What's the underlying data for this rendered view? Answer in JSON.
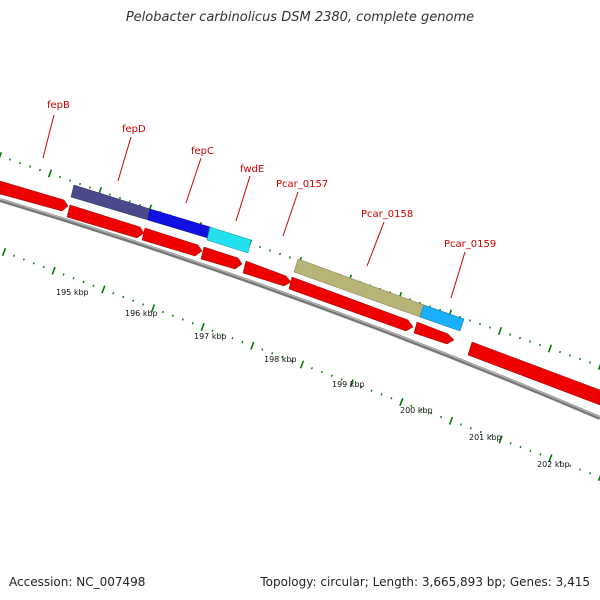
{
  "title": "Pelobacter carbinolicus DSM 2380, complete genome",
  "footer": {
    "accession": "Accession: NC_007498",
    "summary": "Topology: circular; Length: 3,665,893 bp; Genes: 3,415"
  },
  "colors": {
    "label": "#cc0000",
    "tick": "#007700",
    "backbone": "#888888",
    "forward_default": "#ff0000",
    "fepD": "#4a4a8a",
    "fepC": "#1010e0",
    "fwdE": "#22e0ee",
    "Pcar_0158": "#b8b478",
    "Pcar_0159": "#1ab0ff"
  },
  "gene_labels": [
    {
      "name": "fepB"
    },
    {
      "name": "fepD"
    },
    {
      "name": "fepC"
    },
    {
      "name": "fwdE"
    },
    {
      "name": "Pcar_0157"
    },
    {
      "name": "Pcar_0158"
    },
    {
      "name": "Pcar_0159"
    }
  ],
  "kbp_labels": [
    "195 kbp",
    "196 kbp",
    "197 kbp",
    "198 kbp",
    "199 kbp",
    "200 kbp",
    "201 kbp",
    "202 kbp"
  ]
}
